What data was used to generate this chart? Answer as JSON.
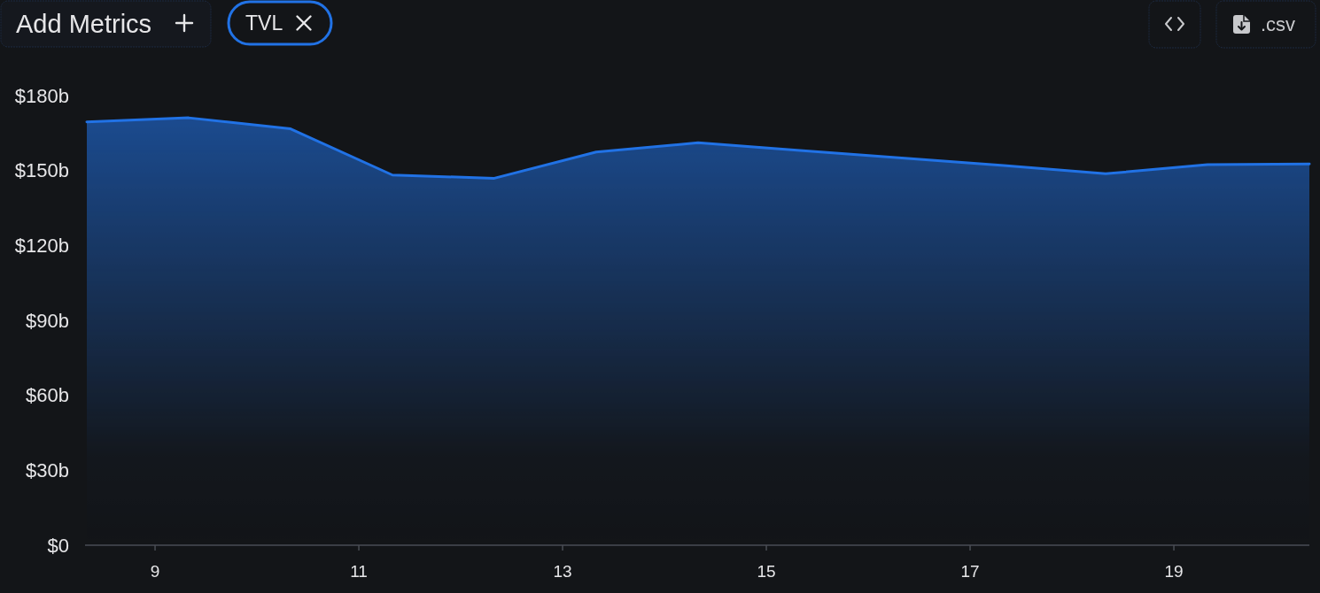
{
  "chart_data": {
    "type": "area",
    "x": [
      8.33,
      9.33,
      10.33,
      11.33,
      12.33,
      13.33,
      14.33,
      15.33,
      16.33,
      17.33,
      18.33,
      19.33,
      20.33
    ],
    "series": [
      {
        "name": "TVL",
        "color": "#2172e5",
        "values": [
          169.5,
          171.1,
          166.7,
          148.2,
          146.9,
          157.4,
          161.1,
          158.0,
          155.0,
          152.0,
          148.7,
          152.4,
          152.6
        ]
      }
    ],
    "xlim": [
      8.33,
      20.33
    ],
    "xticks": [
      9,
      11,
      13,
      15,
      17,
      19
    ],
    "ylim": [
      0,
      180
    ],
    "yticks": [
      {
        "value": 0,
        "label": "$0"
      },
      {
        "value": 30,
        "label": "$30b"
      },
      {
        "value": 60,
        "label": "$60b"
      },
      {
        "value": 90,
        "label": "$90b"
      },
      {
        "value": 120,
        "label": "$120b"
      },
      {
        "value": 150,
        "label": "$150b"
      },
      {
        "value": 180,
        "label": "$180b"
      }
    ],
    "legend": "top left",
    "annotations": [
      "Add Metrics",
      ".csv"
    ]
  }
}
